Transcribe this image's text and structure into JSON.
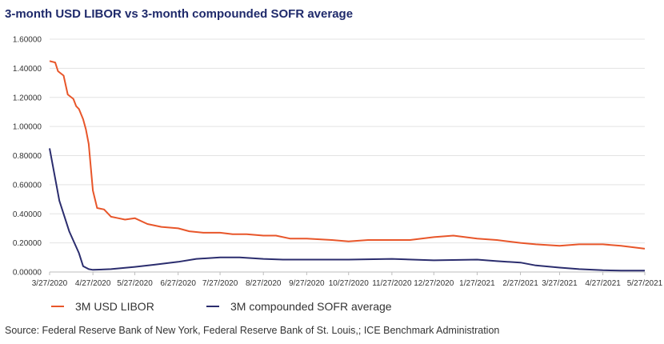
{
  "title": "3-month USD LIBOR vs 3-month compounded SOFR average",
  "source": "Source: Federal Reserve Bank of New York, Federal Reserve Bank of St. Louis,; ICE Benchmark Administration",
  "chart_data": {
    "type": "line",
    "grid": true,
    "legend_position": "bottom",
    "ylim": [
      0,
      1.6
    ],
    "y_ticks": [
      "0.00000",
      "0.20000",
      "0.40000",
      "0.60000",
      "0.80000",
      "1.00000",
      "1.20000",
      "1.40000",
      "1.60000"
    ],
    "x_ticks": [
      "3/27/2020",
      "4/27/2020",
      "5/27/2020",
      "6/27/2020",
      "7/27/2020",
      "8/27/2020",
      "9/27/2020",
      "10/27/2020",
      "11/27/2020",
      "12/27/2020",
      "1/27/2021",
      "2/27/2021",
      "3/27/2021",
      "4/27/2021",
      "5/27/2021"
    ],
    "series": [
      {
        "name": "3M USD LIBOR",
        "color": "#e8562a",
        "x": [
          "3/27/2020",
          "3/31/2020",
          "4/2/2020",
          "4/6/2020",
          "4/9/2020",
          "4/13/2020",
          "4/15/2020",
          "4/17/2020",
          "4/20/2020",
          "4/22/2020",
          "4/24/2020",
          "4/27/2020",
          "4/30/2020",
          "5/5/2020",
          "5/10/2020",
          "5/15/2020",
          "5/20/2020",
          "5/27/2020",
          "6/5/2020",
          "6/15/2020",
          "6/27/2020",
          "7/5/2020",
          "7/15/2020",
          "7/27/2020",
          "8/5/2020",
          "8/15/2020",
          "8/27/2020",
          "9/5/2020",
          "9/15/2020",
          "9/27/2020",
          "10/15/2020",
          "10/27/2020",
          "11/10/2020",
          "11/27/2020",
          "12/10/2020",
          "12/27/2020",
          "1/10/2021",
          "1/27/2021",
          "2/10/2021",
          "2/27/2021",
          "3/10/2021",
          "3/27/2021",
          "4/10/2021",
          "4/27/2021",
          "5/10/2021",
          "5/27/2021"
        ],
        "values": [
          1.45,
          1.44,
          1.38,
          1.35,
          1.22,
          1.19,
          1.14,
          1.12,
          1.05,
          0.98,
          0.88,
          0.56,
          0.44,
          0.43,
          0.38,
          0.37,
          0.36,
          0.37,
          0.33,
          0.31,
          0.3,
          0.28,
          0.27,
          0.27,
          0.26,
          0.26,
          0.25,
          0.25,
          0.23,
          0.23,
          0.22,
          0.21,
          0.22,
          0.22,
          0.22,
          0.24,
          0.25,
          0.23,
          0.22,
          0.2,
          0.19,
          0.18,
          0.19,
          0.19,
          0.18,
          0.16
        ]
      },
      {
        "name": "3M compounded SOFR average",
        "color": "#2b2d6e",
        "x": [
          "3/27/2020",
          "4/3/2020",
          "4/10/2020",
          "4/17/2020",
          "4/20/2020",
          "4/24/2020",
          "4/27/2020",
          "5/10/2020",
          "5/27/2020",
          "6/10/2020",
          "6/27/2020",
          "7/10/2020",
          "7/27/2020",
          "8/10/2020",
          "8/27/2020",
          "9/10/2020",
          "9/27/2020",
          "10/27/2020",
          "11/27/2020",
          "12/27/2020",
          "1/27/2021",
          "2/10/2021",
          "2/27/2021",
          "3/10/2021",
          "3/27/2021",
          "4/10/2021",
          "4/27/2021",
          "5/10/2021",
          "5/27/2021"
        ],
        "values": [
          0.85,
          0.49,
          0.28,
          0.13,
          0.04,
          0.02,
          0.015,
          0.02,
          0.035,
          0.05,
          0.07,
          0.09,
          0.1,
          0.1,
          0.09,
          0.085,
          0.085,
          0.085,
          0.09,
          0.08,
          0.085,
          0.075,
          0.065,
          0.045,
          0.03,
          0.02,
          0.012,
          0.01,
          0.01
        ]
      }
    ]
  }
}
